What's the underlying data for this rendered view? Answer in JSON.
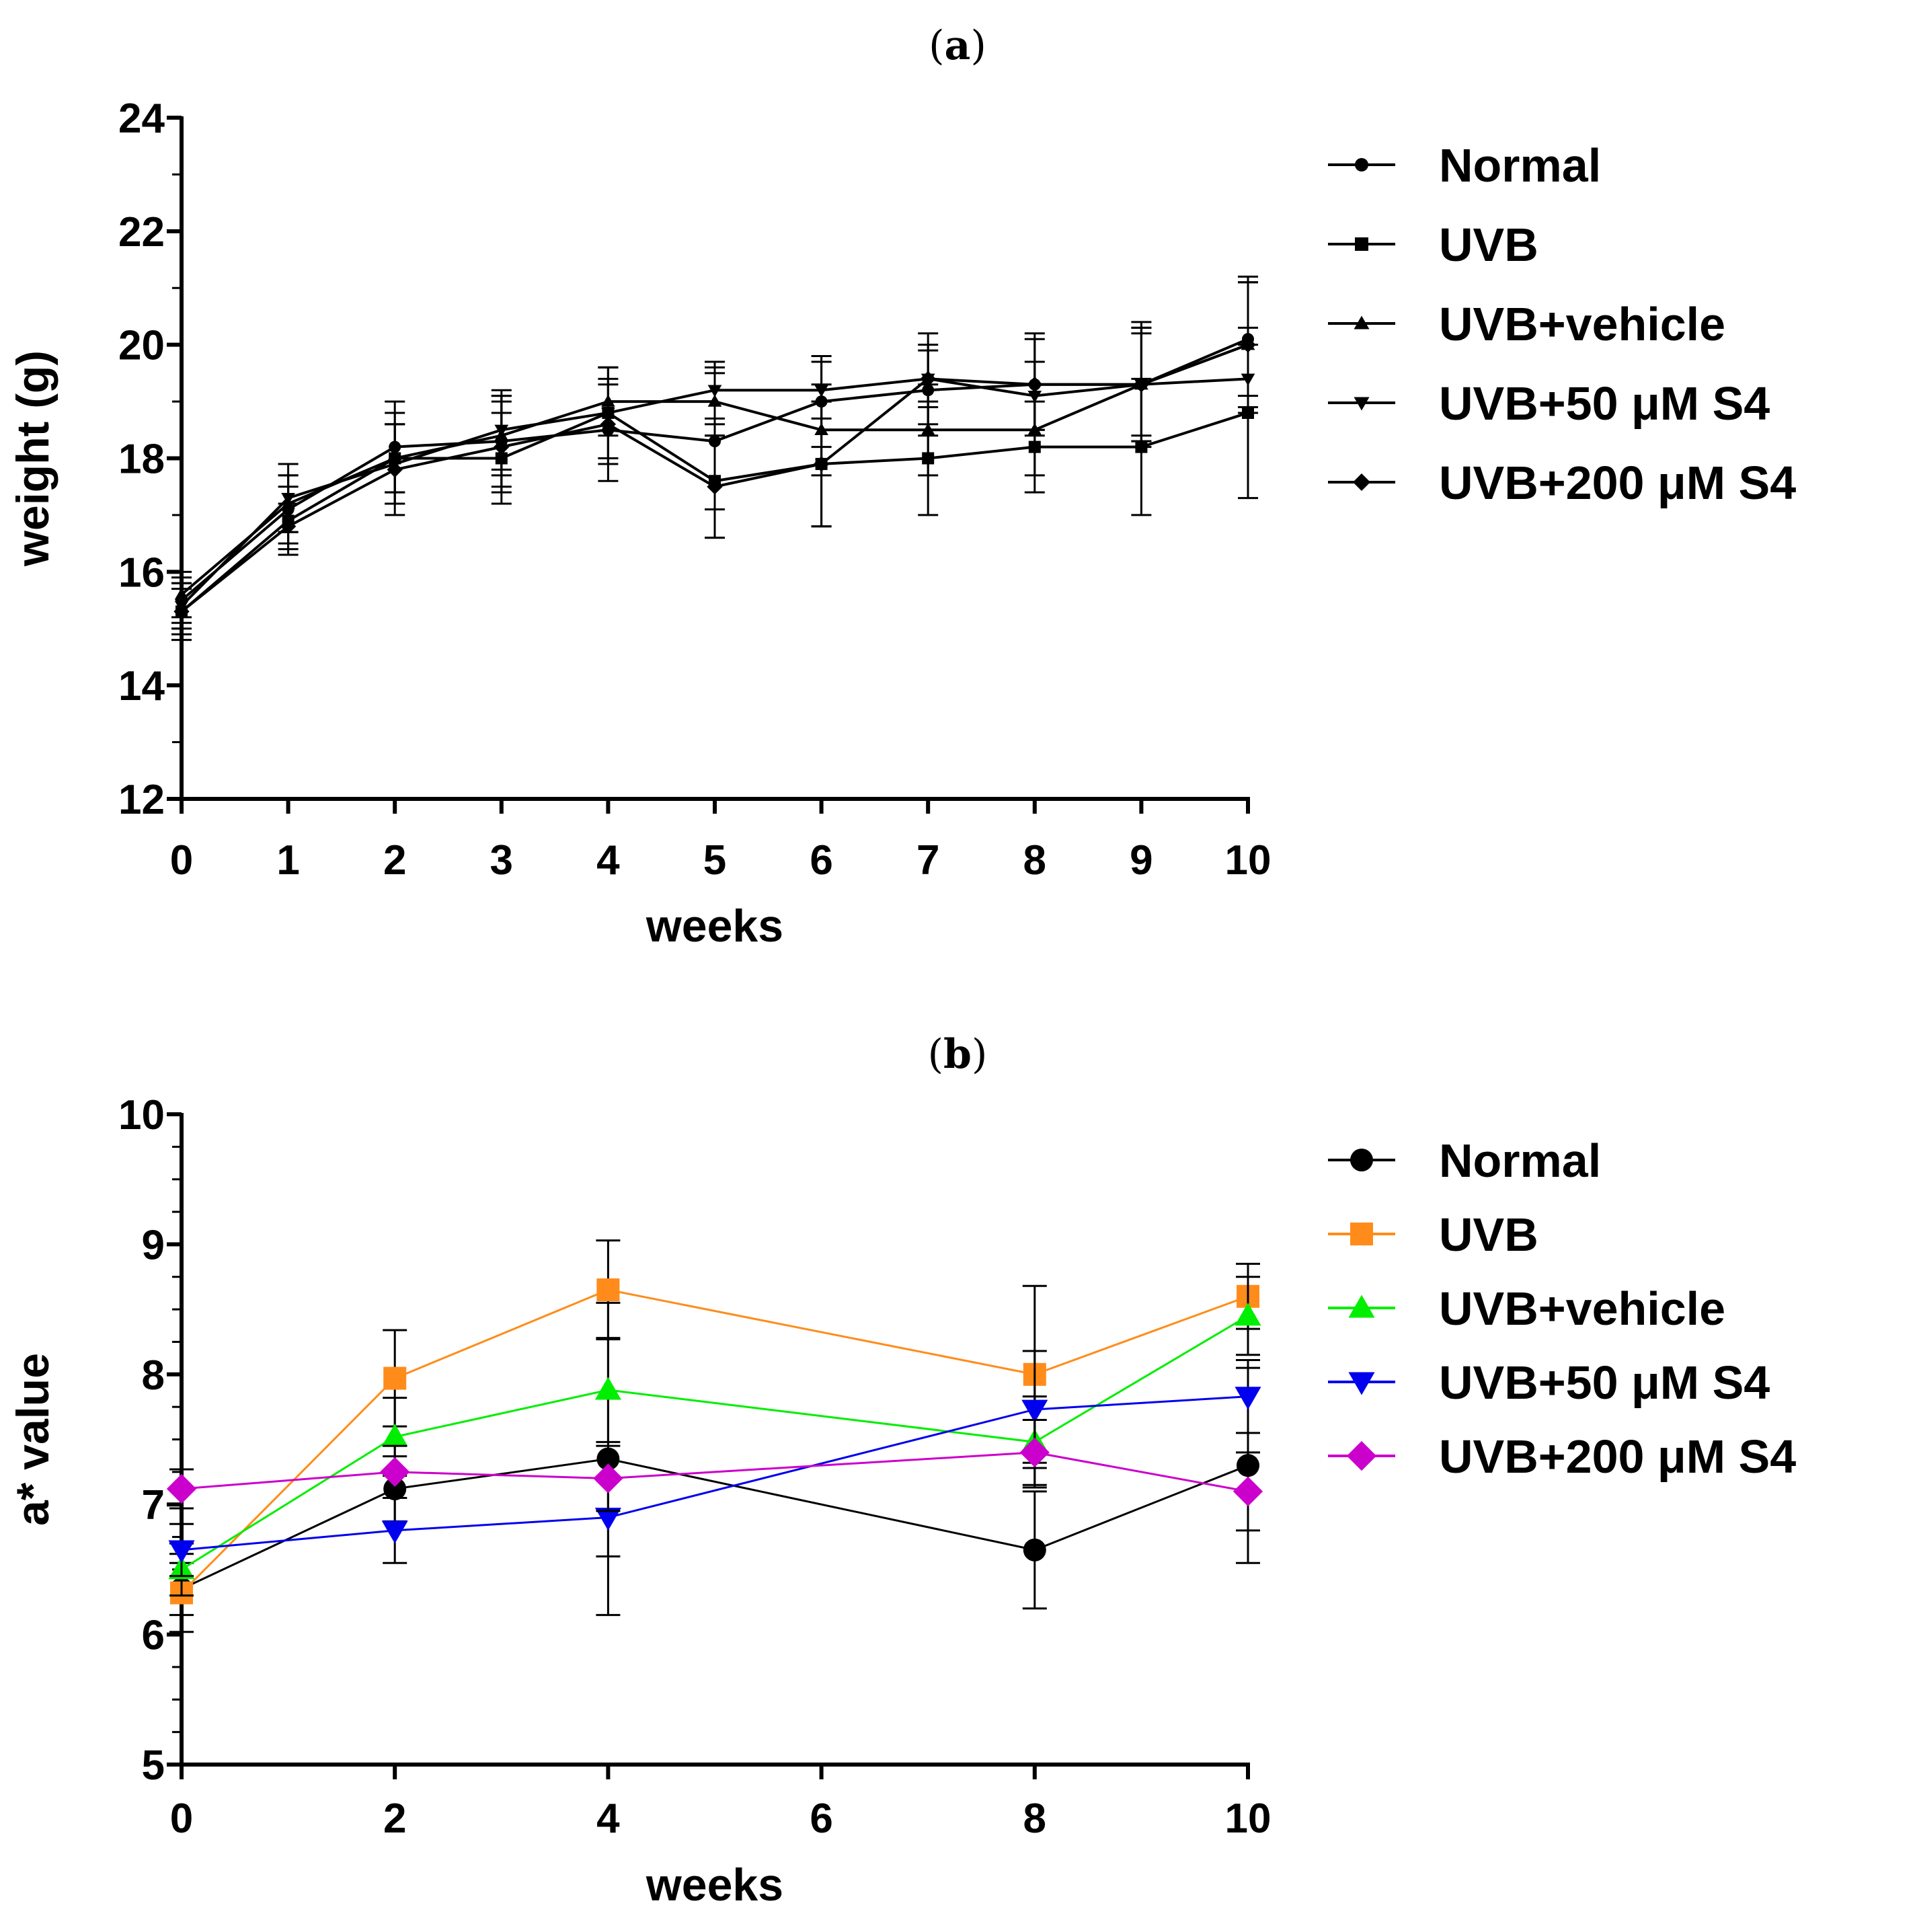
{
  "chart_data": [
    {
      "panel_label": "a",
      "type": "line",
      "title": "",
      "xlabel": "weeks",
      "ylabel": "weight (g)",
      "xlim": [
        0,
        10
      ],
      "ylim": [
        12,
        24
      ],
      "x_ticks": [
        0,
        1,
        2,
        3,
        4,
        5,
        6,
        7,
        8,
        9,
        10
      ],
      "x_tick_labels": [
        "0",
        "1",
        "2",
        "3",
        "4",
        "5",
        "6",
        "7",
        "8",
        "9",
        "10"
      ],
      "y_ticks": [
        12,
        14,
        16,
        18,
        20,
        22,
        24
      ],
      "y_tick_labels": [
        "12",
        "14",
        "16",
        "18",
        "20",
        "22",
        "24"
      ],
      "y_minor_step": 1,
      "grid": false,
      "legend_position": "right",
      "x": [
        0,
        1,
        2,
        3,
        4,
        5,
        6,
        7,
        8,
        9,
        10
      ],
      "series": [
        {
          "name": "Normal",
          "marker": "circle",
          "color": "#000000",
          "values": [
            15.5,
            17.1,
            18.2,
            18.3,
            18.5,
            18.3,
            19.0,
            19.2,
            19.3,
            19.3,
            20.1
          ],
          "errors": [
            0.4,
            0.6,
            0.8,
            0.8,
            0.9,
            1.2,
            0.8,
            0.8,
            0.8,
            1.0,
            1.0
          ]
        },
        {
          "name": "UVB",
          "marker": "square",
          "color": "#000000",
          "values": [
            15.3,
            16.9,
            18.0,
            18.0,
            18.8,
            17.6,
            17.9,
            18.0,
            18.2,
            18.2,
            18.8
          ],
          "errors": [
            0.5,
            0.6,
            0.8,
            0.8,
            0.8,
            1.0,
            1.1,
            1.0,
            0.8,
            1.2,
            1.5
          ]
        },
        {
          "name": "UVB+vehicle",
          "marker": "triangle-up",
          "color": "#000000",
          "values": [
            15.6,
            17.2,
            18.0,
            18.4,
            19.0,
            19.0,
            18.5,
            18.5,
            18.5,
            19.3,
            20.0
          ],
          "errors": [
            0.4,
            0.5,
            0.6,
            0.7,
            0.6,
            0.6,
            0.8,
            0.8,
            0.8,
            0.9,
            1.2
          ]
        },
        {
          "name": "UVB+50 μM S4",
          "marker": "triangle-down",
          "color": "#000000",
          "values": [
            15.4,
            17.3,
            17.9,
            18.5,
            18.8,
            19.2,
            19.2,
            19.4,
            19.1,
            19.3,
            19.4
          ],
          "errors": [
            0.4,
            0.6,
            0.7,
            0.7,
            0.8,
            0.5,
            0.5,
            0.5,
            0.6,
            1.0,
            0.6
          ]
        },
        {
          "name": "UVB+200 μM S4",
          "marker": "diamond",
          "color": "#000000",
          "values": [
            15.3,
            16.8,
            17.8,
            18.2,
            18.6,
            17.5,
            17.9,
            19.4,
            19.3,
            19.3,
            20.0
          ],
          "errors": [
            0.4,
            0.4,
            0.8,
            0.8,
            0.7,
            0.9,
            1.1,
            0.8,
            0.9,
            1.1,
            1.1
          ]
        }
      ]
    },
    {
      "panel_label": "b",
      "type": "line",
      "title": "",
      "xlabel": "weeks",
      "ylabel": "a* value",
      "xlim": [
        0,
        10
      ],
      "ylim": [
        5,
        10
      ],
      "x_ticks": [
        0,
        2,
        4,
        6,
        8,
        10
      ],
      "x_tick_labels": [
        "0",
        "2",
        "4",
        "6",
        "8",
        "10"
      ],
      "y_ticks": [
        5,
        6,
        7,
        8,
        9,
        10
      ],
      "y_tick_labels": [
        "5",
        "6",
        "7",
        "8",
        "9",
        "10"
      ],
      "y_minor_step": 0.25,
      "grid": false,
      "legend_position": "right",
      "x": [
        0,
        2,
        4,
        8,
        10
      ],
      "series": [
        {
          "name": "Normal",
          "marker": "circle",
          "color": "#000000",
          "values": [
            6.35,
            7.12,
            7.35,
            6.65,
            7.3
          ],
          "errors": [
            0.2,
            0.25,
            1.2,
            0.45,
            0.75
          ]
        },
        {
          "name": "UVB",
          "marker": "square",
          "color": "#ff8c1a",
          "values": [
            6.32,
            7.97,
            8.65,
            8.0,
            8.6
          ],
          "errors": [
            0.3,
            0.37,
            0.38,
            0.68,
            0.25
          ]
        },
        {
          "name": "UVB+vehicle",
          "marker": "triangle-up",
          "color": "#00ee00",
          "values": [
            6.5,
            7.52,
            7.88,
            7.48,
            8.45
          ],
          "errors": [
            0.2,
            0.3,
            0.4,
            0.35,
            0.3
          ]
        },
        {
          "name": "UVB+50 μM S4",
          "marker": "triangle-down",
          "color": "#0000ee",
          "values": [
            6.65,
            6.8,
            6.9,
            7.73,
            7.83
          ],
          "errors": [
            0.2,
            0.25,
            0.3,
            0.45,
            0.28
          ]
        },
        {
          "name": "UVB+200 μM S4",
          "marker": "diamond",
          "color": "#cc00cc",
          "values": [
            7.12,
            7.25,
            7.2,
            7.4,
            7.1
          ],
          "errors": [
            0.15,
            0.2,
            0.25,
            0.25,
            0.3
          ]
        }
      ]
    }
  ]
}
